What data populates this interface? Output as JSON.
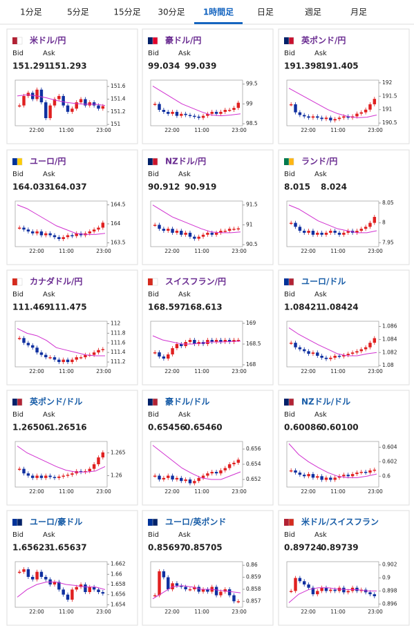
{
  "tabs": [
    "1分足",
    "5分足",
    "15分足",
    "30分足",
    "1時間足",
    "日足",
    "週足",
    "月足"
  ],
  "active_tab": 4,
  "labels": {
    "bid": "Bid",
    "ask": "Ask"
  },
  "time_labels": [
    "22:00",
    "11:00",
    "23:00"
  ],
  "cards": [
    {
      "name": "米ドル/円",
      "color": "#6a2c91",
      "bid": "151.291",
      "ask": "151.293",
      "ylim": [
        150.98,
        151.7
      ],
      "yticks": [
        151,
        151.2,
        151.4,
        151.6
      ],
      "closes": [
        151.3,
        151.45,
        151.5,
        151.4,
        151.55,
        151.35,
        151.1,
        151.3,
        151.4,
        151.45,
        151.3,
        151.2,
        151.25,
        151.35,
        151.4,
        151.3,
        151.35,
        151.3,
        151.25,
        151.29
      ],
      "ma": [
        151.45,
        151.47,
        151.45,
        151.42,
        151.38,
        151.35,
        151.33,
        151.32,
        151.32,
        151.3
      ]
    },
    {
      "name": "豪ドル/円",
      "color": "#6a2c91",
      "bid": "99.034",
      "ask": "99.039",
      "ylim": [
        98.45,
        99.6
      ],
      "yticks": [
        98.5,
        99,
        99.5
      ],
      "closes": [
        99.0,
        98.85,
        98.8,
        98.75,
        98.8,
        98.7,
        98.75,
        98.72,
        98.7,
        98.68,
        98.65,
        98.7,
        98.75,
        98.8,
        98.75,
        98.8,
        98.85,
        98.85,
        98.9,
        99.03
      ],
      "ma": [
        99.45,
        99.3,
        99.15,
        99.0,
        98.9,
        98.8,
        98.72,
        98.7,
        98.72,
        98.75
      ]
    },
    {
      "name": "英ポンド/円",
      "color": "#6a2c91",
      "bid": "191.398",
      "ask": "191.405",
      "ylim": [
        190.4,
        192.1
      ],
      "yticks": [
        190.5,
        191,
        191.5,
        192
      ],
      "closes": [
        191.2,
        190.9,
        190.8,
        190.75,
        190.7,
        190.75,
        190.7,
        190.65,
        190.7,
        190.6,
        190.65,
        190.7,
        190.75,
        190.7,
        190.75,
        190.85,
        190.9,
        191.0,
        191.2,
        191.4
      ],
      "ma": [
        191.8,
        191.6,
        191.4,
        191.2,
        191.0,
        190.85,
        190.75,
        190.7,
        190.72,
        190.8
      ]
    },
    {
      "name": "ユーロ/円",
      "color": "#6a2c91",
      "bid": "164.033",
      "ask": "164.037",
      "ylim": [
        163.4,
        164.6
      ],
      "yticks": [
        163.5,
        164,
        164.5
      ],
      "closes": [
        163.9,
        163.85,
        163.8,
        163.75,
        163.8,
        163.7,
        163.75,
        163.7,
        163.65,
        163.6,
        163.65,
        163.7,
        163.68,
        163.75,
        163.7,
        163.75,
        163.8,
        163.85,
        163.9,
        164.03
      ],
      "ma": [
        164.5,
        164.4,
        164.25,
        164.1,
        163.95,
        163.85,
        163.75,
        163.72,
        163.72,
        163.75
      ]
    },
    {
      "name": "NZドル/円",
      "color": "#6a2c91",
      "bid": "90.912",
      "ask": "90.919",
      "ylim": [
        90.45,
        91.6
      ],
      "yticks": [
        90.5,
        91,
        91.5
      ],
      "closes": [
        91.0,
        90.9,
        90.85,
        90.9,
        90.8,
        90.85,
        90.75,
        90.8,
        90.7,
        90.65,
        90.7,
        90.75,
        90.8,
        90.75,
        90.8,
        90.85,
        90.85,
        90.9,
        90.9,
        90.91
      ],
      "ma": [
        91.5,
        91.35,
        91.2,
        91.1,
        91.0,
        90.9,
        90.82,
        90.8,
        90.8,
        90.82
      ]
    },
    {
      "name": "ランド/円",
      "color": "#6a2c91",
      "bid": "8.015",
      "ask": "8.024",
      "ylim": [
        7.94,
        8.055
      ],
      "yticks": [
        7.95,
        8,
        8.05
      ],
      "closes": [
        8.0,
        7.99,
        7.98,
        7.975,
        7.98,
        7.97,
        7.975,
        7.97,
        7.975,
        7.98,
        7.975,
        7.97,
        7.975,
        7.98,
        7.975,
        7.98,
        7.985,
        7.99,
        8.0,
        8.015
      ],
      "ma": [
        8.045,
        8.035,
        8.02,
        8.005,
        7.995,
        7.985,
        7.98,
        7.975,
        7.975,
        7.98
      ]
    },
    {
      "name": "カナダドル/円",
      "color": "#6a2c91",
      "bid": "111.469",
      "ask": "111.475",
      "ylim": [
        111.1,
        112.05
      ],
      "yticks": [
        111.2,
        111.4,
        111.6,
        111.8,
        112
      ],
      "closes": [
        111.7,
        111.6,
        111.55,
        111.5,
        111.4,
        111.35,
        111.3,
        111.3,
        111.25,
        111.2,
        111.25,
        111.2,
        111.25,
        111.3,
        111.3,
        111.35,
        111.35,
        111.4,
        111.45,
        111.47
      ],
      "ma": [
        111.9,
        111.8,
        111.75,
        111.65,
        111.5,
        111.45,
        111.4,
        111.35,
        111.33,
        111.33
      ]
    },
    {
      "name": "スイスフラン/円",
      "color": "#6a2c91",
      "bid": "168.597",
      "ask": "168.613",
      "ylim": [
        167.95,
        169.05
      ],
      "yticks": [
        168,
        168.5,
        169
      ],
      "closes": [
        168.3,
        168.2,
        168.15,
        168.25,
        168.4,
        168.5,
        168.45,
        168.55,
        168.6,
        168.5,
        168.55,
        168.5,
        168.6,
        168.55,
        168.6,
        168.55,
        168.6,
        168.55,
        168.6,
        168.6
      ],
      "ma": [
        168.7,
        168.6,
        168.55,
        168.5,
        168.5,
        168.52,
        168.55,
        168.55,
        168.56,
        168.57
      ]
    },
    {
      "name": "ユーロ/ドル",
      "color": "#1a5ea8",
      "bid": "1.08421",
      "ask": "1.08424",
      "ylim": [
        1.0798,
        1.0868
      ],
      "yticks": [
        1.08,
        1.082,
        1.084,
        1.086
      ],
      "closes": [
        1.0835,
        1.0828,
        1.0825,
        1.0822,
        1.0818,
        1.082,
        1.0815,
        1.0812,
        1.081,
        1.0812,
        1.0815,
        1.0814,
        1.0816,
        1.0818,
        1.082,
        1.0822,
        1.0825,
        1.0828,
        1.0835,
        1.0842
      ],
      "ma": [
        1.0858,
        1.0848,
        1.084,
        1.0832,
        1.0825,
        1.0818,
        1.0815,
        1.0815,
        1.0818,
        1.082
      ]
    },
    {
      "name": "英ポンド/ドル",
      "color": "#1a5ea8",
      "bid": "1.26506",
      "ask": "1.26516",
      "ylim": [
        1.2575,
        1.2675
      ],
      "yticks": [
        1.26,
        1.265
      ],
      "closes": [
        1.2615,
        1.2605,
        1.26,
        1.2595,
        1.26,
        1.2595,
        1.26,
        1.2597,
        1.2595,
        1.2598,
        1.26,
        1.2602,
        1.2605,
        1.261,
        1.2608,
        1.261,
        1.2615,
        1.2625,
        1.264,
        1.2651
      ],
      "ma": [
        1.2665,
        1.265,
        1.264,
        1.263,
        1.262,
        1.2612,
        1.2608,
        1.2608,
        1.261,
        1.262
      ]
    },
    {
      "name": "豪ドル/ドル",
      "color": "#1a5ea8",
      "bid": "0.65456",
      "ask": "0.65460",
      "ylim": [
        0.651,
        0.657
      ],
      "yticks": [
        0.652,
        0.654,
        0.656
      ],
      "closes": [
        0.6525,
        0.652,
        0.6522,
        0.6525,
        0.652,
        0.6522,
        0.6518,
        0.652,
        0.6515,
        0.6518,
        0.6522,
        0.6525,
        0.6528,
        0.653,
        0.6528,
        0.6532,
        0.6535,
        0.654,
        0.6542,
        0.6546
      ],
      "ma": [
        0.6565,
        0.6555,
        0.6545,
        0.6535,
        0.6528,
        0.6522,
        0.652,
        0.652,
        0.6525,
        0.653
      ]
    },
    {
      "name": "NZドル/ドル",
      "color": "#1a5ea8",
      "bid": "0.60086",
      "ask": "0.60100",
      "ylim": [
        0.5985,
        0.6048
      ],
      "yticks": [
        0.6,
        0.602,
        0.604
      ],
      "closes": [
        0.6008,
        0.6005,
        0.6002,
        0.6,
        0.6003,
        0.5998,
        0.6,
        0.5995,
        0.5998,
        0.5995,
        0.5998,
        0.6,
        0.6002,
        0.6,
        0.6003,
        0.6005,
        0.6006,
        0.6005,
        0.6008,
        0.6009
      ],
      "ma": [
        0.6045,
        0.603,
        0.602,
        0.6012,
        0.6005,
        0.6,
        0.5998,
        0.5998,
        0.6,
        0.6003
      ]
    },
    {
      "name": "ユーロ/豪ドル",
      "color": "#1a5ea8",
      "bid": "1.65623",
      "ask": "1.65637",
      "ylim": [
        1.6535,
        1.6625
      ],
      "yticks": [
        1.654,
        1.656,
        1.658,
        1.66,
        1.662
      ],
      "closes": [
        1.6605,
        1.661,
        1.6595,
        1.659,
        1.6605,
        1.6595,
        1.659,
        1.658,
        1.6585,
        1.657,
        1.656,
        1.655,
        1.657,
        1.6575,
        1.658,
        1.6565,
        1.6575,
        1.657,
        1.6565,
        1.6562
      ],
      "ma": [
        1.6555,
        1.657,
        1.658,
        1.6585,
        1.6585,
        1.658,
        1.6578,
        1.6575,
        1.6575,
        1.657
      ]
    },
    {
      "name": "ユーロ/英ポンド",
      "color": "#1a5ea8",
      "bid": "0.85697",
      "ask": "0.85705",
      "ylim": [
        0.8565,
        0.8603
      ],
      "yticks": [
        0.857,
        0.858,
        0.859,
        0.86
      ],
      "closes": [
        0.8575,
        0.8595,
        0.859,
        0.858,
        0.8585,
        0.8583,
        0.8582,
        0.858,
        0.858,
        0.8582,
        0.8578,
        0.858,
        0.8578,
        0.8582,
        0.8575,
        0.8578,
        0.858,
        0.8575,
        0.857,
        0.857
      ],
      "ma": [
        0.8572,
        0.8577,
        0.8582,
        0.8583,
        0.8582,
        0.858,
        0.858,
        0.8579,
        0.8578,
        0.8577
      ]
    },
    {
      "name": "米ドル/スイスフラン",
      "color": "#1a5ea8",
      "bid": "0.89724",
      "ask": "0.89739",
      "ylim": [
        0.8955,
        0.9025
      ],
      "yticks": [
        0.896,
        0.898,
        0.9,
        0.902
      ],
      "closes": [
        0.898,
        0.9,
        0.8995,
        0.899,
        0.8985,
        0.8975,
        0.898,
        0.8985,
        0.898,
        0.8982,
        0.898,
        0.8985,
        0.8978,
        0.898,
        0.8985,
        0.898,
        0.8982,
        0.8978,
        0.8975,
        0.8972
      ],
      "ma": [
        0.8962,
        0.8975,
        0.8982,
        0.8985,
        0.8985,
        0.8983,
        0.8982,
        0.8982,
        0.898,
        0.898
      ]
    }
  ]
}
